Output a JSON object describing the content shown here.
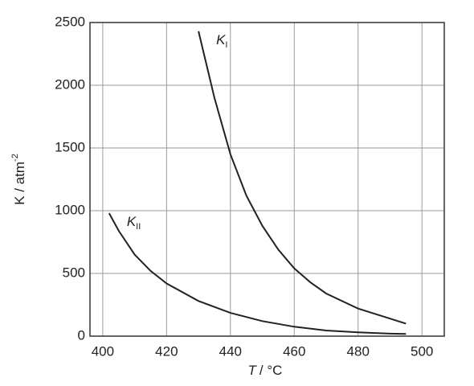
{
  "chart_data": {
    "type": "line",
    "x_label_var": "T",
    "x_label_unit": "/ °C",
    "y_label": "K / atm",
    "y_label_sup": "-2",
    "xlim": [
      396,
      507
    ],
    "ylim": [
      0,
      2500
    ],
    "xticks": [
      400,
      420,
      440,
      460,
      480,
      500
    ],
    "yticks": [
      0,
      500,
      1000,
      1500,
      2000,
      2500
    ],
    "grid": true,
    "series": [
      {
        "name": "K",
        "sub": "I",
        "color": "#222222",
        "x": [
          430,
          435,
          440,
          445,
          450,
          455,
          460,
          465,
          470,
          480,
          490,
          495
        ],
        "values": [
          2430,
          1900,
          1450,
          1120,
          880,
          690,
          540,
          430,
          340,
          220,
          140,
          100
        ]
      },
      {
        "name": "K",
        "sub": "II",
        "color": "#222222",
        "x": [
          402,
          405,
          410,
          415,
          420,
          430,
          440,
          450,
          460,
          470,
          480,
          490,
          495
        ],
        "values": [
          980,
          840,
          650,
          520,
          420,
          280,
          185,
          120,
          75,
          45,
          30,
          20,
          17
        ]
      }
    ]
  }
}
